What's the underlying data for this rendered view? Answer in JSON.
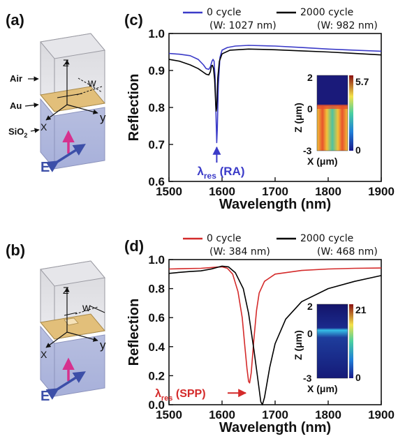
{
  "panels": {
    "a": {
      "letter": "(a)",
      "air": "Air",
      "au": "Au",
      "sio2": "SiO",
      "sio2_sub": "2",
      "e": "E",
      "z": "Z",
      "x": "X",
      "y": "y",
      "w": "w"
    },
    "b": {
      "letter": "(b)",
      "e": "E",
      "z": "Z",
      "x": "X",
      "y": "y",
      "w": "w"
    },
    "c": {
      "letter": "(c)"
    },
    "d": {
      "letter": "(d)"
    }
  },
  "colors": {
    "blue": "#3b3bc8",
    "red": "#d42a2a",
    "black": "#000000",
    "magenta": "#d6318e",
    "darrow": "#3c4fa8"
  },
  "chart_data": [
    {
      "type": "line",
      "panel": "c",
      "xlabel": "Wavelength (nm)",
      "ylabel": "Reflection",
      "xlim": [
        1500,
        1900
      ],
      "ylim": [
        0.6,
        1.0
      ],
      "x_ticks": [
        "1500",
        "1600",
        "1700",
        "1800",
        "1900"
      ],
      "y_ticks": [
        "0.6",
        "0.7",
        "0.8",
        "0.9",
        "1.0"
      ],
      "legend": [
        {
          "label": "0 cycle",
          "sub": "(W: 1027 nm)",
          "color": "#3b3bc8"
        },
        {
          "label": "2000 cycle",
          "sub": "(W: 982 nm)",
          "color": "#000000"
        }
      ],
      "annotation": {
        "main": "λ",
        "sub": "res",
        "tail": " (RA)",
        "x": 1590,
        "y": 0.7
      },
      "series": [
        {
          "name": "0 cycle",
          "color": "#3b3bc8",
          "points": [
            [
              1500,
              0.946
            ],
            [
              1520,
              0.944
            ],
            [
              1540,
              0.94
            ],
            [
              1555,
              0.93
            ],
            [
              1565,
              0.915
            ],
            [
              1570,
              0.905
            ],
            [
              1575,
              0.903
            ],
            [
              1578,
              0.91
            ],
            [
              1581,
              0.925
            ],
            [
              1583,
              0.93
            ],
            [
              1585,
              0.925
            ],
            [
              1587,
              0.88
            ],
            [
              1589,
              0.76
            ],
            [
              1590,
              0.705
            ],
            [
              1591,
              0.74
            ],
            [
              1593,
              0.86
            ],
            [
              1596,
              0.935
            ],
            [
              1600,
              0.955
            ],
            [
              1610,
              0.962
            ],
            [
              1625,
              0.966
            ],
            [
              1650,
              0.968
            ],
            [
              1700,
              0.966
            ],
            [
              1750,
              0.962
            ],
            [
              1800,
              0.958
            ],
            [
              1850,
              0.955
            ],
            [
              1900,
              0.952
            ]
          ]
        },
        {
          "name": "2000 cycle",
          "color": "#000000",
          "points": [
            [
              1500,
              0.93
            ],
            [
              1520,
              0.925
            ],
            [
              1540,
              0.915
            ],
            [
              1555,
              0.905
            ],
            [
              1565,
              0.895
            ],
            [
              1570,
              0.89
            ],
            [
              1575,
              0.888
            ],
            [
              1578,
              0.897
            ],
            [
              1580,
              0.912
            ],
            [
              1582,
              0.914
            ],
            [
              1584,
              0.905
            ],
            [
              1586,
              0.875
            ],
            [
              1588,
              0.81
            ],
            [
              1589,
              0.79
            ],
            [
              1590,
              0.8
            ],
            [
              1592,
              0.88
            ],
            [
              1595,
              0.925
            ],
            [
              1600,
              0.945
            ],
            [
              1615,
              0.955
            ],
            [
              1650,
              0.958
            ],
            [
              1700,
              0.956
            ],
            [
              1750,
              0.953
            ],
            [
              1800,
              0.95
            ],
            [
              1850,
              0.946
            ],
            [
              1900,
              0.942
            ]
          ]
        }
      ],
      "inset": {
        "xlabel": "X (μm)",
        "ylabel": "Z (μm)",
        "y_ticks": [
          "2",
          "0",
          "-3"
        ],
        "cbar_max": "5.7",
        "cbar_min": "0"
      }
    },
    {
      "type": "line",
      "panel": "d",
      "xlabel": "Wavelength (nm)",
      "ylabel": "Reflection",
      "xlim": [
        1500,
        1900
      ],
      "ylim": [
        0.0,
        1.0
      ],
      "x_ticks": [
        "1500",
        "1600",
        "1700",
        "1800",
        "1900"
      ],
      "y_ticks": [
        "0.0",
        "0.2",
        "0.4",
        "0.6",
        "0.8",
        "1.0"
      ],
      "legend": [
        {
          "label": "0 cycle",
          "sub": "(W: 384 nm)",
          "color": "#d42a2a"
        },
        {
          "label": "2000 cycle",
          "sub": "(W: 468 nm)",
          "color": "#000000"
        }
      ],
      "annotation": {
        "main": "λ",
        "sub": "res",
        "tail": " (SPP)",
        "x": 1650,
        "y": 0.1
      },
      "series": [
        {
          "name": "0 cycle",
          "color": "#d42a2a",
          "points": [
            [
              1500,
              0.935
            ],
            [
              1530,
              0.938
            ],
            [
              1560,
              0.94
            ],
            [
              1580,
              0.945
            ],
            [
              1590,
              0.948
            ],
            [
              1600,
              0.95
            ],
            [
              1610,
              0.94
            ],
            [
              1620,
              0.9
            ],
            [
              1630,
              0.78
            ],
            [
              1638,
              0.6
            ],
            [
              1643,
              0.4
            ],
            [
              1647,
              0.25
            ],
            [
              1650,
              0.16
            ],
            [
              1652,
              0.15
            ],
            [
              1655,
              0.22
            ],
            [
              1660,
              0.45
            ],
            [
              1665,
              0.65
            ],
            [
              1670,
              0.77
            ],
            [
              1680,
              0.85
            ],
            [
              1700,
              0.9
            ],
            [
              1750,
              0.925
            ],
            [
              1800,
              0.935
            ],
            [
              1850,
              0.94
            ],
            [
              1900,
              0.942
            ]
          ]
        },
        {
          "name": "2000 cycle",
          "color": "#000000",
          "points": [
            [
              1500,
              0.905
            ],
            [
              1520,
              0.912
            ],
            [
              1540,
              0.918
            ],
            [
              1560,
              0.922
            ],
            [
              1580,
              0.935
            ],
            [
              1590,
              0.945
            ],
            [
              1600,
              0.955
            ],
            [
              1612,
              0.95
            ],
            [
              1625,
              0.91
            ],
            [
              1640,
              0.8
            ],
            [
              1650,
              0.63
            ],
            [
              1660,
              0.38
            ],
            [
              1668,
              0.16
            ],
            [
              1673,
              0.02
            ],
            [
              1676,
              0.0
            ],
            [
              1680,
              0.05
            ],
            [
              1690,
              0.26
            ],
            [
              1700,
              0.42
            ],
            [
              1720,
              0.59
            ],
            [
              1750,
              0.71
            ],
            [
              1800,
              0.8
            ],
            [
              1850,
              0.85
            ],
            [
              1900,
              0.89
            ]
          ]
        }
      ],
      "inset": {
        "xlabel": "X (μm)",
        "ylabel": "Z (μm)",
        "y_ticks": [
          "2",
          "0",
          "-3"
        ],
        "cbar_max": "21",
        "cbar_min": "0"
      }
    }
  ]
}
